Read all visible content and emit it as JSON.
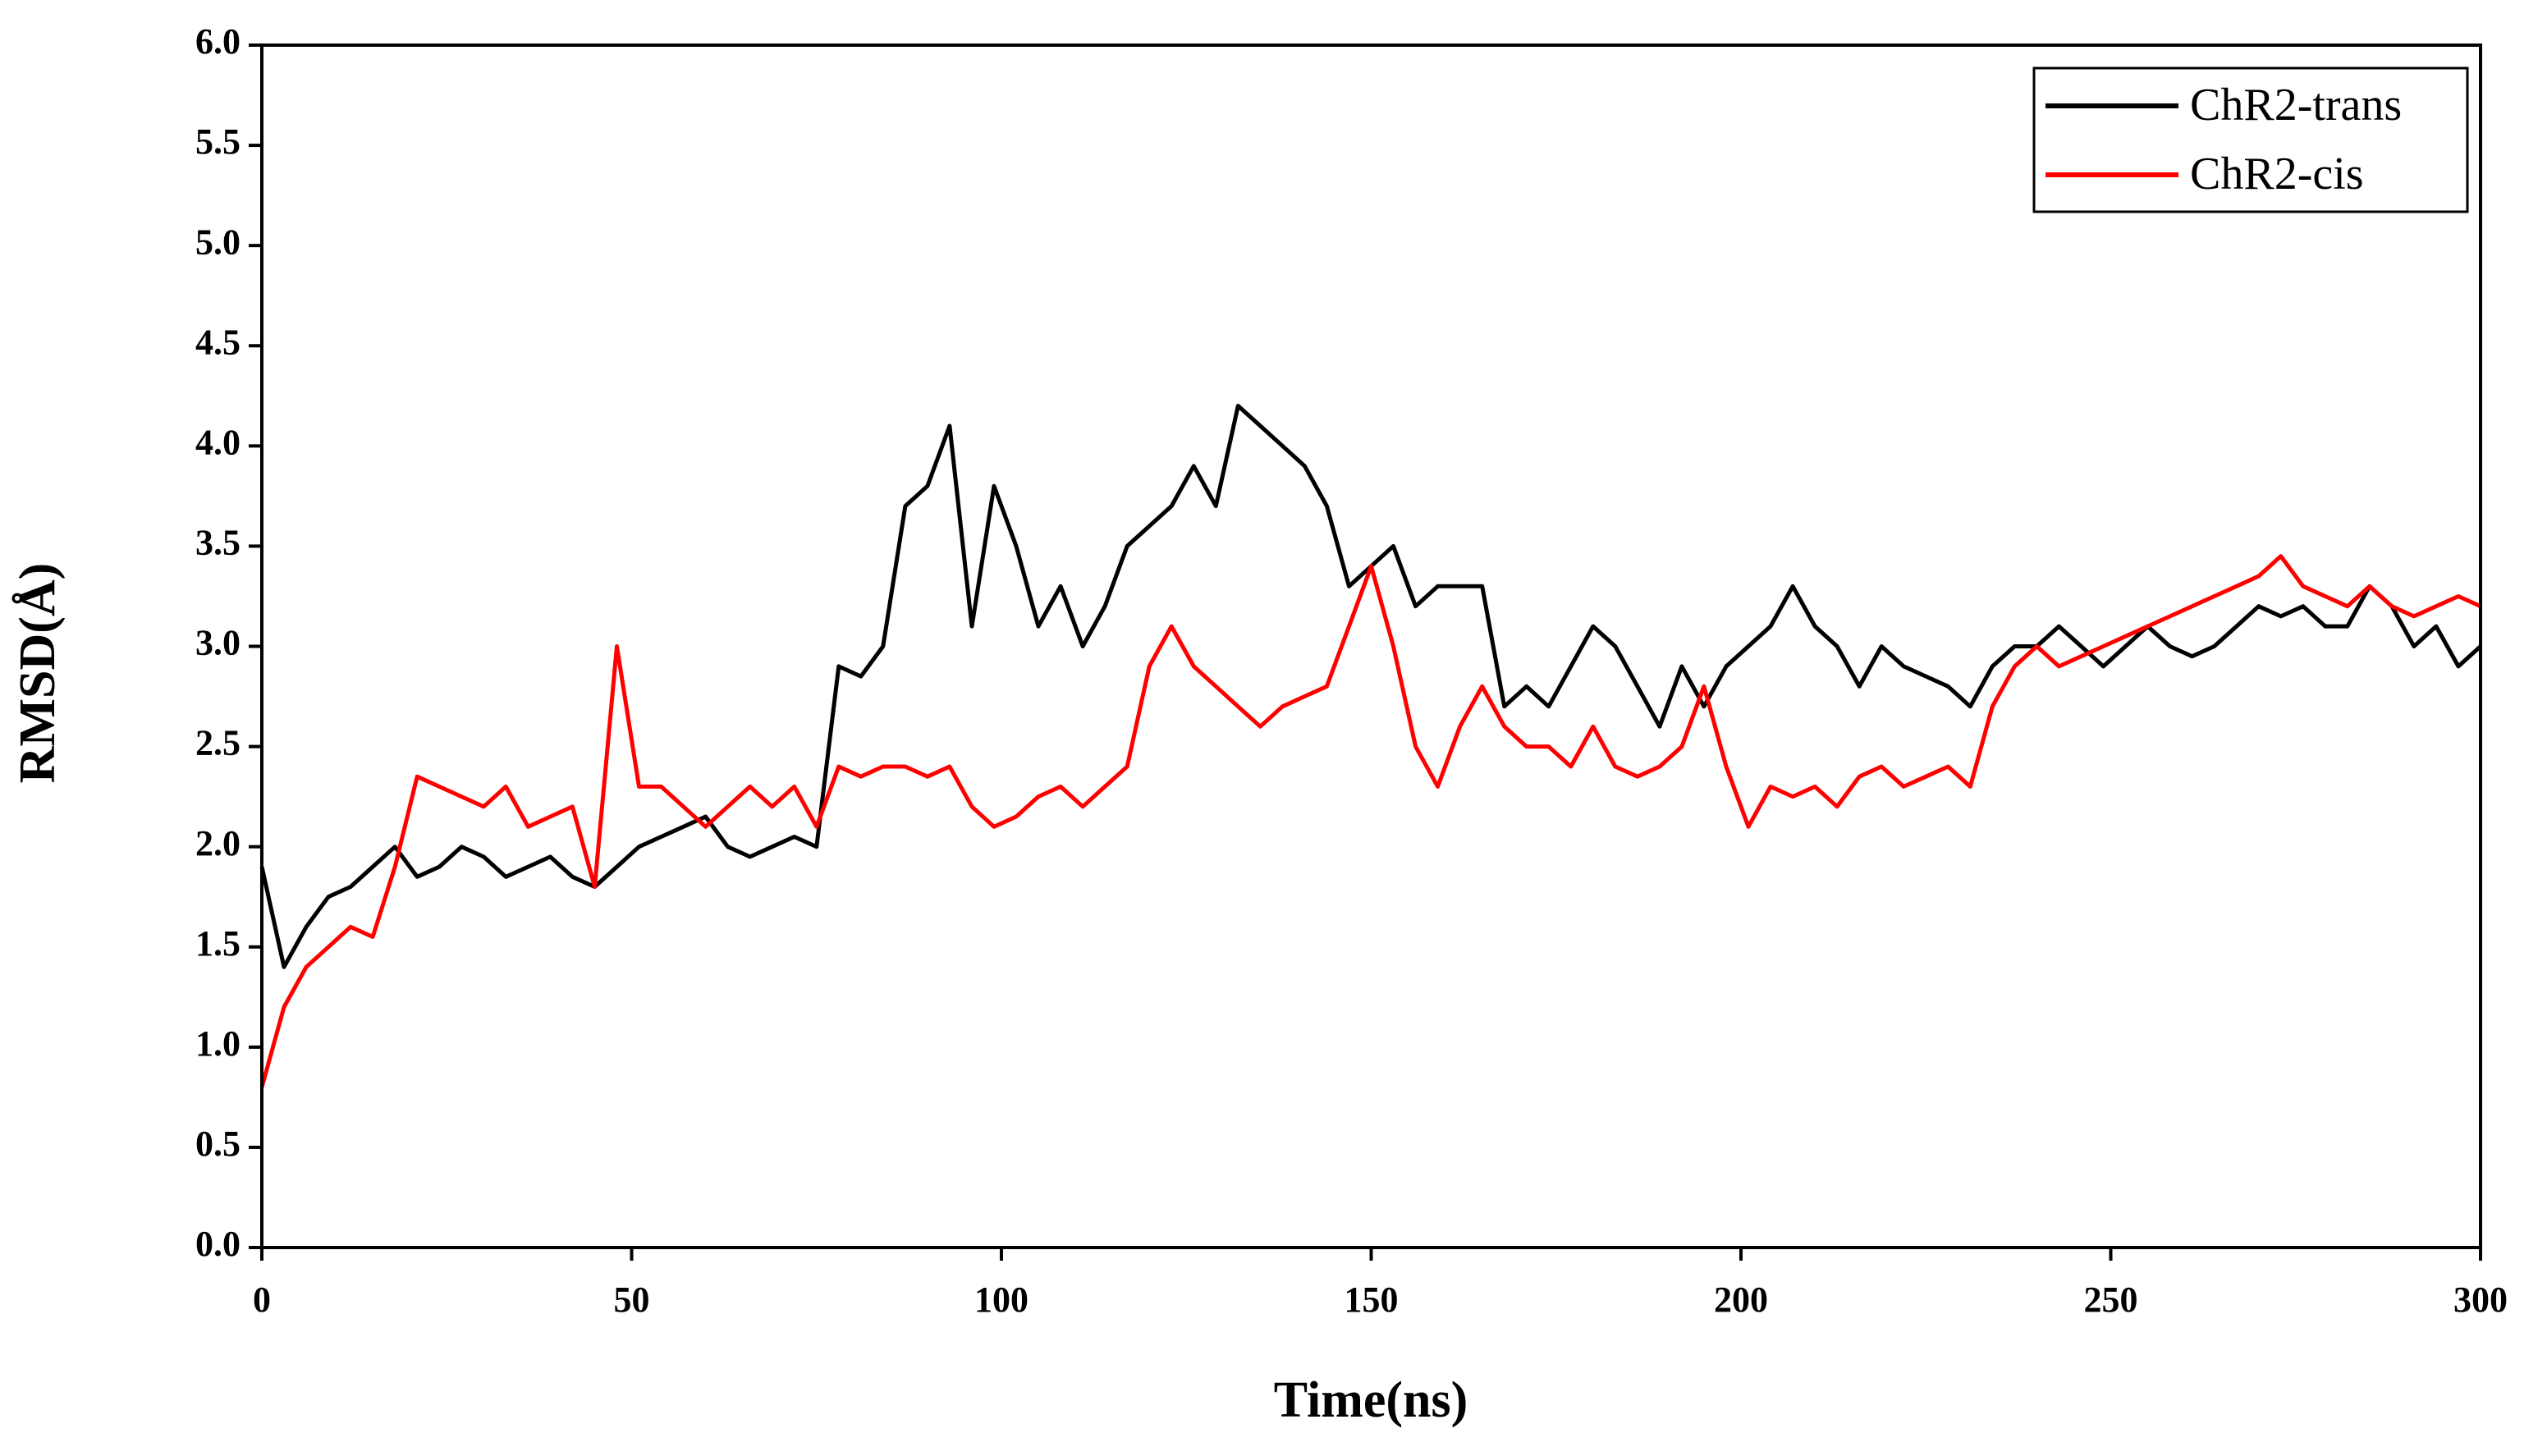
{
  "chart_data": {
    "type": "line",
    "x_label": "Time(ns)",
    "y_label": "RMSD(Å)",
    "x": [
      0,
      3,
      6,
      9,
      12,
      15,
      18,
      21,
      24,
      27,
      30,
      33,
      36,
      39,
      42,
      45,
      48,
      51,
      54,
      57,
      60,
      63,
      66,
      69,
      72,
      75,
      78,
      81,
      84,
      87,
      90,
      93,
      96,
      99,
      102,
      105,
      108,
      111,
      114,
      117,
      120,
      123,
      126,
      129,
      132,
      135,
      138,
      141,
      144,
      147,
      150,
      153,
      156,
      159,
      162,
      165,
      168,
      171,
      174,
      177,
      180,
      183,
      186,
      189,
      192,
      195,
      198,
      201,
      204,
      207,
      210,
      213,
      216,
      219,
      222,
      225,
      228,
      231,
      234,
      237,
      240,
      243,
      246,
      249,
      252,
      255,
      258,
      261,
      264,
      267,
      270,
      273,
      276,
      279,
      282,
      285,
      288,
      291,
      294,
      297,
      300
    ],
    "series": [
      {
        "name": "ChR2-trans",
        "color": "#000000",
        "values": [
          1.9,
          1.4,
          1.6,
          1.75,
          1.8,
          1.9,
          2.0,
          1.85,
          1.9,
          2.0,
          1.95,
          1.85,
          1.9,
          1.95,
          1.85,
          1.8,
          1.9,
          2.0,
          2.05,
          2.1,
          2.15,
          2.0,
          1.95,
          2.0,
          2.05,
          2.0,
          2.9,
          2.85,
          3.0,
          3.7,
          3.8,
          4.1,
          3.1,
          3.8,
          3.5,
          3.1,
          3.3,
          3.0,
          3.2,
          3.5,
          3.6,
          3.7,
          3.9,
          3.7,
          4.2,
          4.1,
          4.0,
          3.9,
          3.7,
          3.3,
          3.4,
          3.5,
          3.2,
          3.3,
          3.3,
          3.3,
          2.7,
          2.8,
          2.7,
          2.9,
          3.1,
          3.0,
          2.8,
          2.6,
          2.9,
          2.7,
          2.9,
          3.0,
          3.1,
          3.3,
          3.1,
          3.0,
          2.8,
          3.0,
          2.9,
          2.85,
          2.8,
          2.7,
          2.9,
          3.0,
          3.0,
          3.1,
          3.0,
          2.9,
          3.0,
          3.1,
          3.0,
          2.95,
          3.0,
          3.1,
          3.2,
          3.15,
          3.2,
          3.1,
          3.1,
          3.3,
          3.2,
          3.0,
          3.1,
          2.9,
          3.0
        ]
      },
      {
        "name": "ChR2-cis",
        "color": "#ff0000",
        "values": [
          0.8,
          1.2,
          1.4,
          1.5,
          1.6,
          1.55,
          1.9,
          2.35,
          2.3,
          2.25,
          2.2,
          2.3,
          2.1,
          2.15,
          2.2,
          1.8,
          3.0,
          2.3,
          2.3,
          2.2,
          2.1,
          2.2,
          2.3,
          2.2,
          2.3,
          2.1,
          2.4,
          2.35,
          2.4,
          2.4,
          2.35,
          2.4,
          2.2,
          2.1,
          2.15,
          2.25,
          2.3,
          2.2,
          2.3,
          2.4,
          2.9,
          3.1,
          2.9,
          2.8,
          2.7,
          2.6,
          2.7,
          2.75,
          2.8,
          3.1,
          3.4,
          3.0,
          2.5,
          2.3,
          2.6,
          2.8,
          2.6,
          2.5,
          2.5,
          2.4,
          2.6,
          2.4,
          2.35,
          2.4,
          2.5,
          2.8,
          2.4,
          2.1,
          2.3,
          2.25,
          2.3,
          2.2,
          2.35,
          2.4,
          2.3,
          2.35,
          2.4,
          2.3,
          2.7,
          2.9,
          3.0,
          2.9,
          2.95,
          3.0,
          3.05,
          3.1,
          3.15,
          3.2,
          3.25,
          3.3,
          3.35,
          3.45,
          3.3,
          3.25,
          3.2,
          3.3,
          3.2,
          3.15,
          3.2,
          3.25,
          3.2
        ]
      }
    ],
    "xlim": [
      0,
      300
    ],
    "xticks": [
      0,
      50,
      100,
      150,
      200,
      250,
      300
    ],
    "ylim": [
      0,
      6
    ],
    "yticks": [
      {
        "value": 0,
        "label": "0.0"
      },
      0.5,
      {
        "value": 1,
        "label": "1.0"
      },
      1.5,
      {
        "value": 2,
        "label": "2.0"
      },
      2.5,
      {
        "value": 3,
        "label": "3.0"
      },
      3.5,
      {
        "value": 4,
        "label": "4.0"
      },
      4.5,
      {
        "value": 5,
        "label": "5.0"
      },
      5.5,
      {
        "value": 6,
        "label": "6.0"
      }
    ],
    "legend": "top-right"
  }
}
